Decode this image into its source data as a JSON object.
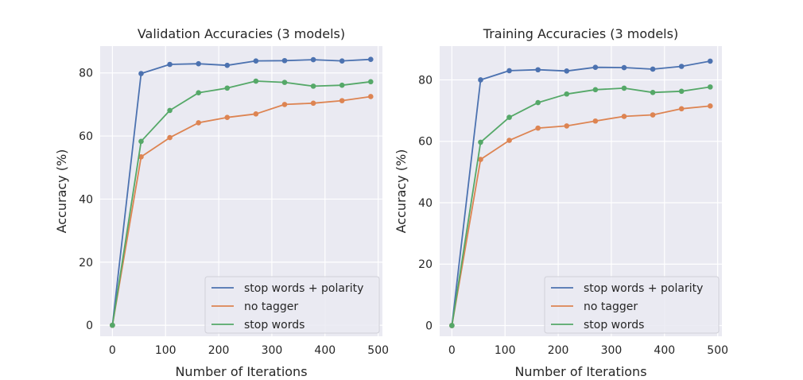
{
  "chart_data": [
    {
      "type": "line",
      "title": "Validation Accuracies (3 models)",
      "xlabel": "Number of Iterations",
      "ylabel": "Accuracy (%)",
      "xlim": [
        -23,
        508
      ],
      "ylim": [
        -3.5,
        88.5
      ],
      "xticks": [
        0,
        100,
        200,
        300,
        400,
        500
      ],
      "yticks": [
        0,
        20,
        40,
        60,
        80
      ],
      "grid": true,
      "legend_position": "lower-right",
      "x": [
        0,
        54,
        108,
        162,
        216,
        270,
        324,
        378,
        432,
        486
      ],
      "series": [
        {
          "name": "stop words + polarity",
          "color": "#4c72b0",
          "values": [
            0,
            79.8,
            82.7,
            82.9,
            82.4,
            83.8,
            83.9,
            84.2,
            83.8,
            84.3
          ]
        },
        {
          "name": "no tagger",
          "color": "#dd8452",
          "values": [
            0,
            53.4,
            59.5,
            64.2,
            65.9,
            67.0,
            70.0,
            70.4,
            71.2,
            72.5
          ]
        },
        {
          "name": "stop words",
          "color": "#55a868",
          "values": [
            0,
            58.3,
            68.1,
            73.7,
            75.2,
            77.4,
            77.0,
            75.8,
            76.1,
            77.2
          ]
        }
      ]
    },
    {
      "type": "line",
      "title": "Training Accuracies (3 models)",
      "xlabel": "Number of Iterations",
      "ylabel": "Accuracy (%)",
      "xlim": [
        -23,
        508
      ],
      "ylim": [
        -3.5,
        91
      ],
      "xticks": [
        0,
        100,
        200,
        300,
        400,
        500
      ],
      "yticks": [
        0,
        20,
        40,
        60,
        80
      ],
      "grid": true,
      "legend_position": "lower-right",
      "x": [
        0,
        54,
        108,
        162,
        216,
        270,
        324,
        378,
        432,
        486
      ],
      "series": [
        {
          "name": "stop words + polarity",
          "color": "#4c72b0",
          "values": [
            0,
            80.0,
            83.0,
            83.3,
            82.9,
            84.1,
            84.0,
            83.5,
            84.4,
            86.1
          ]
        },
        {
          "name": "no tagger",
          "color": "#dd8452",
          "values": [
            0,
            54.1,
            60.3,
            64.3,
            65.0,
            66.6,
            68.1,
            68.6,
            70.6,
            71.5
          ]
        },
        {
          "name": "stop words",
          "color": "#55a868",
          "values": [
            0,
            59.7,
            67.8,
            72.6,
            75.4,
            76.8,
            77.3,
            75.9,
            76.3,
            77.7
          ]
        }
      ]
    }
  ]
}
